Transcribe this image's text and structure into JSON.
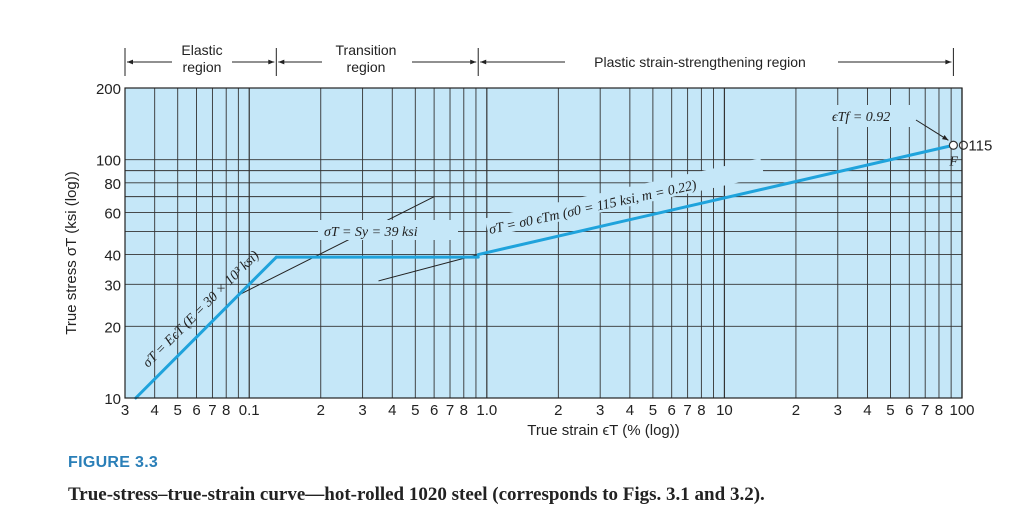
{
  "figure": {
    "label": "FIGURE 3.3",
    "caption": "True-stress–true-strain curve—hot-rolled 1020 steel (corresponds to Figs. 3.1 and 3.2)."
  },
  "chart_data": {
    "type": "line",
    "xscale": "log",
    "yscale": "log",
    "xlabel": "True strain ϵT (% (log))",
    "ylabel": "True stress σT (ksi (log))",
    "xlim": [
      0.03,
      100
    ],
    "ylim": [
      10,
      200
    ],
    "grid": true,
    "x_tick_labels": [
      {
        "value": 0.03,
        "label": "3"
      },
      {
        "value": 0.04,
        "label": "4"
      },
      {
        "value": 0.05,
        "label": "5"
      },
      {
        "value": 0.06,
        "label": "6"
      },
      {
        "value": 0.07,
        "label": "7"
      },
      {
        "value": 0.08,
        "label": "8"
      },
      {
        "value": 0.1,
        "label": "0.1"
      },
      {
        "value": 0.2,
        "label": "2"
      },
      {
        "value": 0.3,
        "label": "3"
      },
      {
        "value": 0.4,
        "label": "4"
      },
      {
        "value": 0.5,
        "label": "5"
      },
      {
        "value": 0.6,
        "label": "6"
      },
      {
        "value": 0.7,
        "label": "7"
      },
      {
        "value": 0.8,
        "label": "8"
      },
      {
        "value": 1,
        "label": "1.0"
      },
      {
        "value": 2,
        "label": "2"
      },
      {
        "value": 3,
        "label": "3"
      },
      {
        "value": 4,
        "label": "4"
      },
      {
        "value": 5,
        "label": "5"
      },
      {
        "value": 6,
        "label": "6"
      },
      {
        "value": 7,
        "label": "7"
      },
      {
        "value": 8,
        "label": "8"
      },
      {
        "value": 10,
        "label": "10"
      },
      {
        "value": 20,
        "label": "2"
      },
      {
        "value": 30,
        "label": "3"
      },
      {
        "value": 40,
        "label": "4"
      },
      {
        "value": 50,
        "label": "5"
      },
      {
        "value": 60,
        "label": "6"
      },
      {
        "value": 70,
        "label": "7"
      },
      {
        "value": 80,
        "label": "8"
      },
      {
        "value": 100,
        "label": "100"
      }
    ],
    "y_tick_labels": [
      {
        "value": 10,
        "label": "10"
      },
      {
        "value": 20,
        "label": "20"
      },
      {
        "value": 30,
        "label": "30"
      },
      {
        "value": 40,
        "label": "40"
      },
      {
        "value": 60,
        "label": "60"
      },
      {
        "value": 80,
        "label": "80"
      },
      {
        "value": 100,
        "label": "100"
      },
      {
        "value": 200,
        "label": "200"
      }
    ],
    "series": [
      {
        "color": "#1fa3dc",
        "segments": [
          {
            "x": [
              0.0333,
              0.13
            ],
            "y": [
              10,
              39
            ]
          },
          {
            "x": [
              0.13,
              0.92
            ],
            "y": [
              39,
              39
            ]
          },
          {
            "x": [
              0.92,
              92
            ],
            "y": [
              40,
              115
            ]
          }
        ]
      }
    ],
    "reference_lines": [
      {
        "x": [
          0.09,
          0.6
        ],
        "y": [
          27,
          70
        ]
      },
      {
        "x": [
          0.35,
          0.92
        ],
        "y": [
          31,
          40
        ]
      }
    ],
    "regions": [
      {
        "label": "Elastic region",
        "x": [
          0.03,
          0.13
        ]
      },
      {
        "label": "Transition region",
        "x": [
          0.13,
          0.92
        ]
      },
      {
        "label": "Plastic strain-strengthening region",
        "x": [
          0.92,
          92
        ]
      }
    ],
    "annotations": {
      "elastic": "σT = EϵT (E = 30 × 10³ ksi)",
      "yield": "σT = Sy = 39 ksi",
      "plastic": "σT = σ0 ϵTm (σ0 = 115 ksi, m = 0.22)",
      "fracture_strain": "ϵTf = 0.92",
      "fracture_stress": "115",
      "fracture_point": "F"
    },
    "plot_background": "#c5e7f8"
  }
}
